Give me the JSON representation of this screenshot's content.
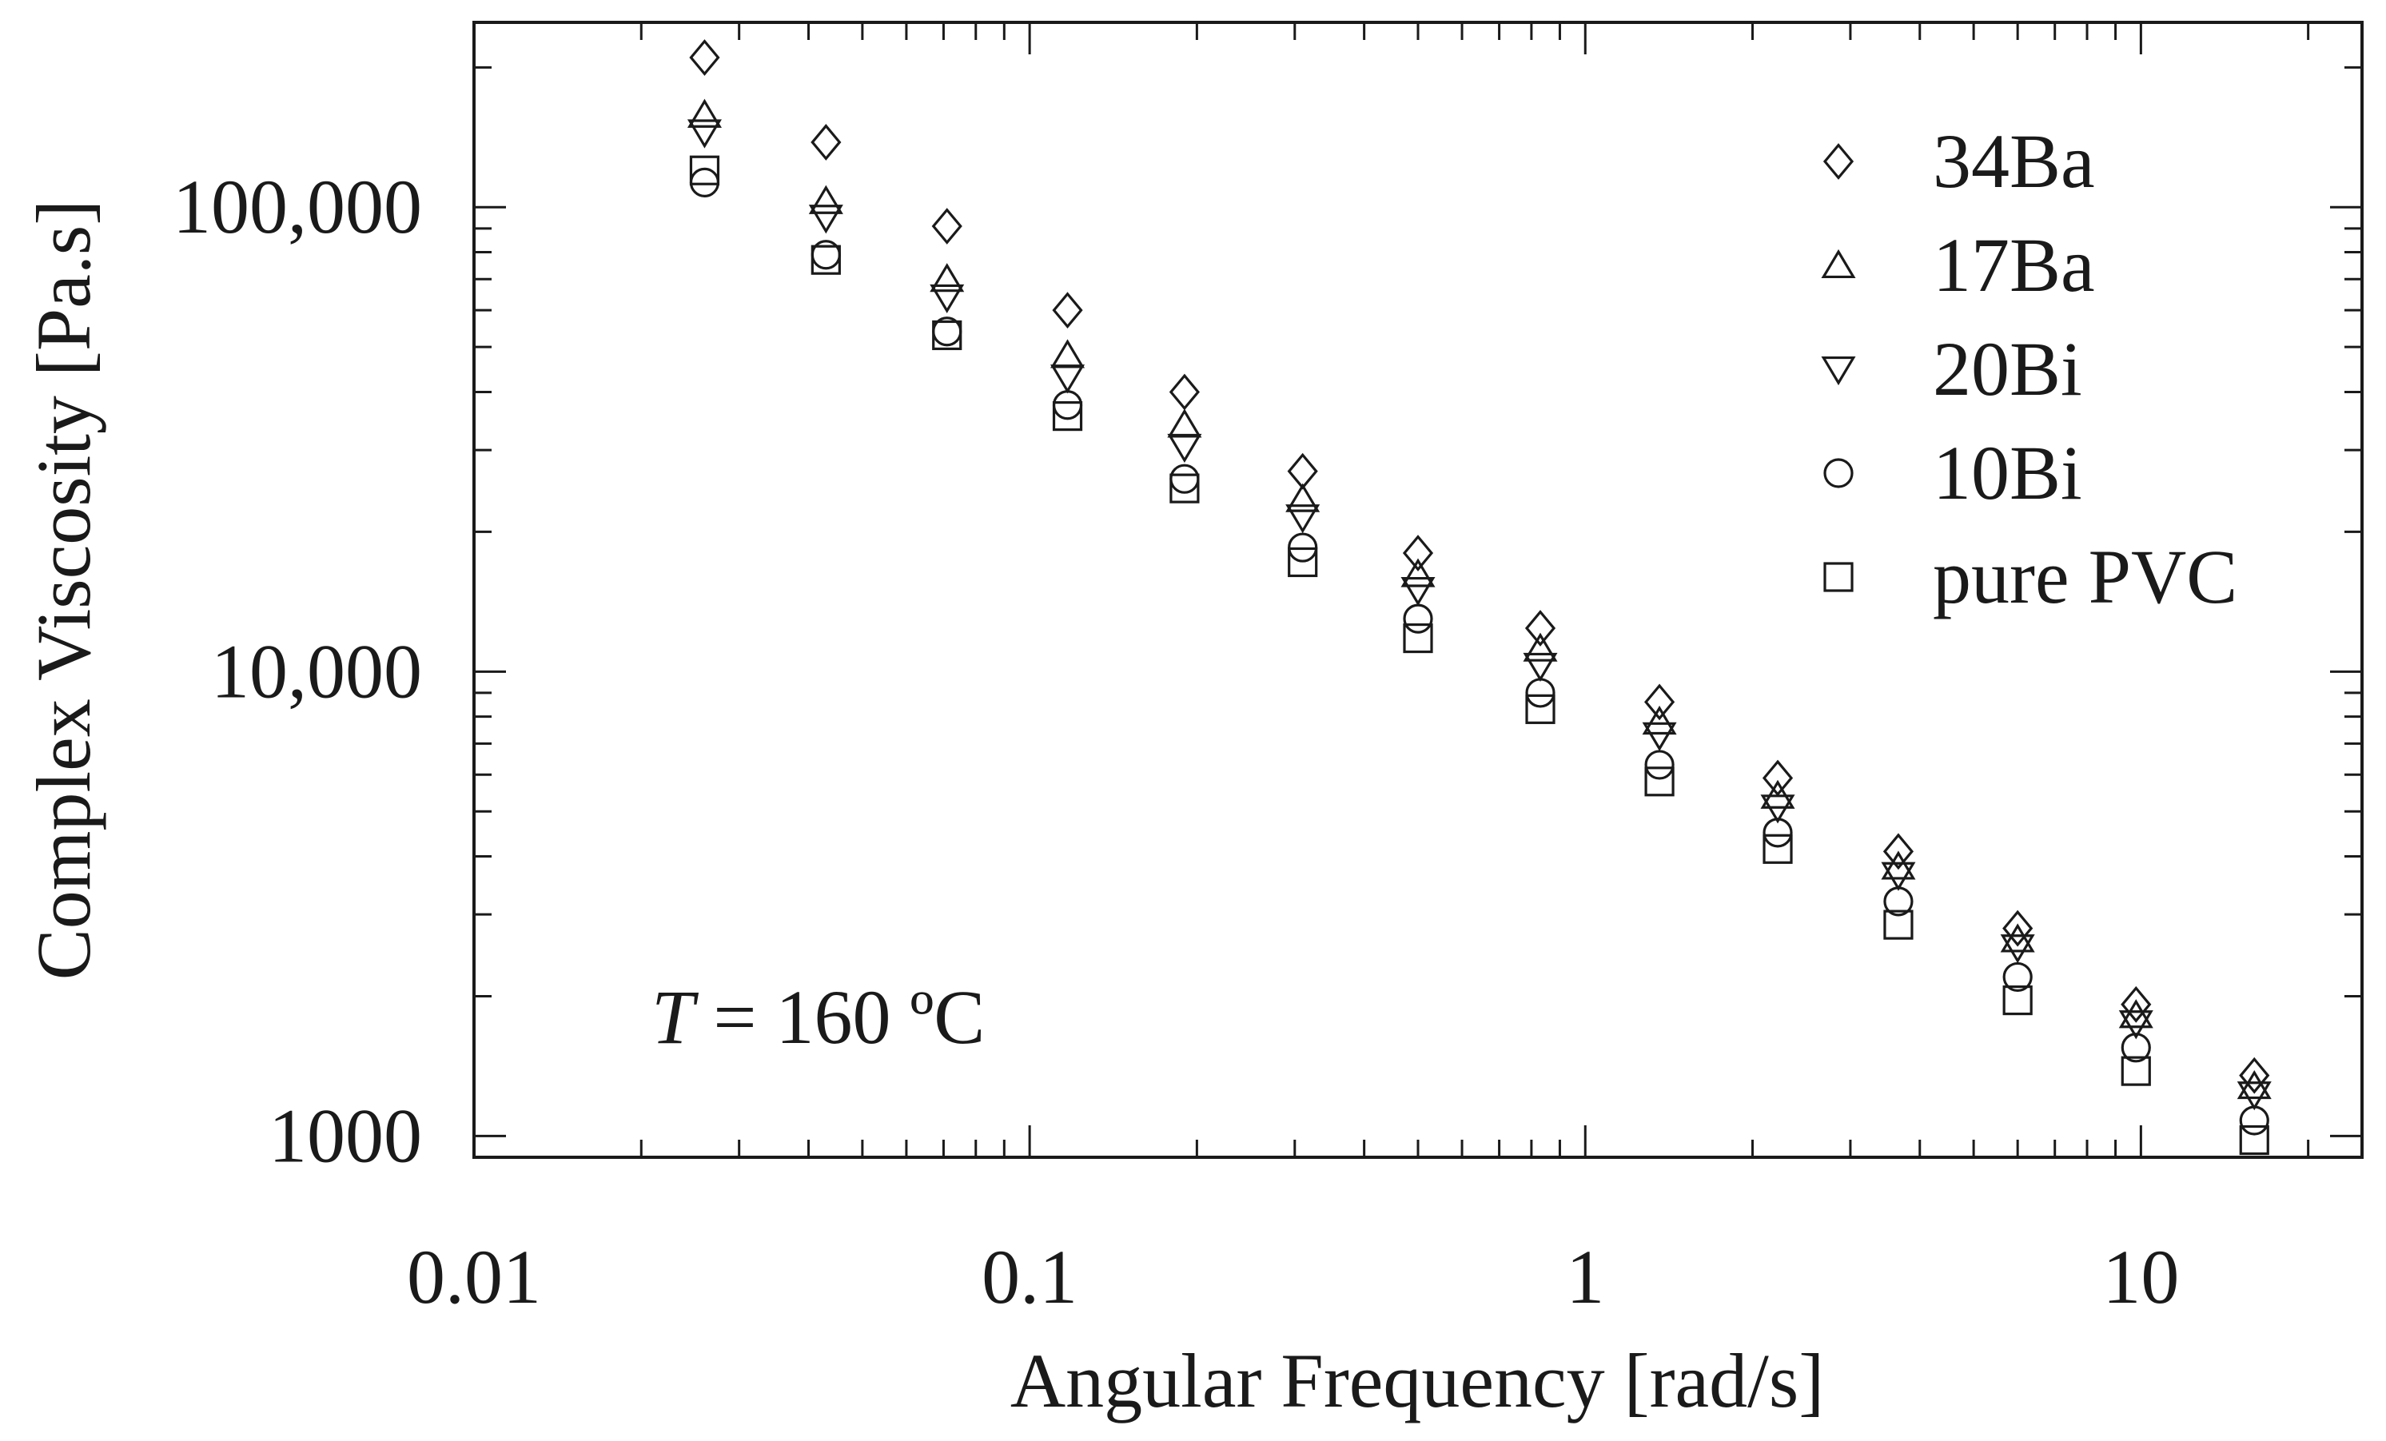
{
  "chart_data": {
    "type": "scatter",
    "xlabel": "Angular Frequency [rad/s]",
    "ylabel": "Complex Viscosity [Pa.s]",
    "x_scale": "log",
    "y_scale": "log",
    "xlim": [
      0.01,
      25
    ],
    "ylim": [
      900,
      250000
    ],
    "grid": false,
    "legend_position": "top-right",
    "x_ticks": [
      {
        "value": 0.01,
        "label": "0.01"
      },
      {
        "value": 0.1,
        "label": "0.1"
      },
      {
        "value": 1,
        "label": "1"
      },
      {
        "value": 10,
        "label": "10"
      }
    ],
    "y_ticks": [
      {
        "value": 1000,
        "label": "1000"
      },
      {
        "value": 10000,
        "label": "10,000"
      },
      {
        "value": 100000,
        "label": "100,000"
      }
    ],
    "annotation": {
      "italic": "T",
      "text": " = 160 ºC"
    },
    "x": [
      0.026,
      0.043,
      0.071,
      0.117,
      0.19,
      0.31,
      0.5,
      0.83,
      1.36,
      2.22,
      3.66,
      6.0,
      9.8,
      16.0
    ],
    "series": [
      {
        "name": "34Ba",
        "marker": "diamond",
        "values": [
          210000,
          138000,
          91000,
          60000,
          40000,
          27000,
          18000,
          12400,
          8600,
          5900,
          4100,
          2800,
          1920,
          1350
        ]
      },
      {
        "name": "17Ba",
        "marker": "triangle-up",
        "values": [
          158000,
          103000,
          70000,
          48000,
          34000,
          23500,
          16200,
          11200,
          7800,
          5400,
          3800,
          2650,
          1820,
          1280
        ]
      },
      {
        "name": "20Bi",
        "marker": "triangle-down",
        "values": [
          145000,
          95000,
          64000,
          43000,
          30500,
          21500,
          15000,
          10300,
          7300,
          5100,
          3650,
          2550,
          1750,
          1230
        ]
      },
      {
        "name": "10Bi",
        "marker": "circle",
        "values": [
          113000,
          79000,
          54000,
          37500,
          26000,
          18500,
          13000,
          9000,
          6300,
          4500,
          3200,
          2200,
          1550,
          1080
        ]
      },
      {
        "name": "pure PVC",
        "marker": "square",
        "values": [
          120000,
          77000,
          53000,
          35500,
          24800,
          17200,
          11800,
          8300,
          5800,
          4150,
          2850,
          1960,
          1380,
          980
        ]
      }
    ]
  }
}
